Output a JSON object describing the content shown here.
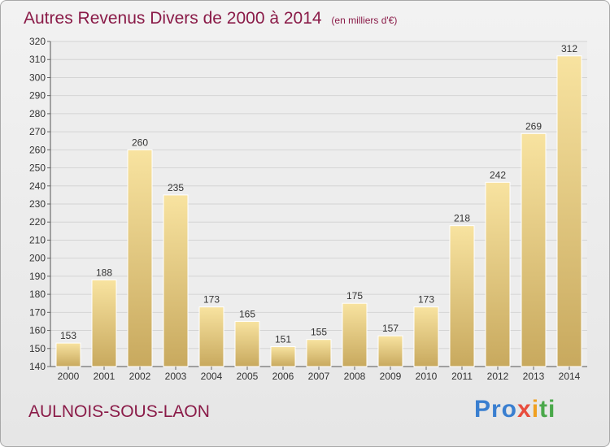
{
  "chart_data": {
    "type": "bar",
    "title": "Autres Revenus Divers de 2000 à 2014",
    "subtitle": "(en milliers d'€)",
    "categories": [
      "2000",
      "2001",
      "2002",
      "2003",
      "2004",
      "2005",
      "2006",
      "2007",
      "2008",
      "2009",
      "2010",
      "2011",
      "2012",
      "2013",
      "2014"
    ],
    "values": [
      153,
      188,
      260,
      235,
      173,
      165,
      151,
      155,
      175,
      157,
      173,
      218,
      242,
      269,
      312
    ],
    "ylim": [
      140,
      320
    ],
    "yticks": [
      140,
      150,
      160,
      170,
      180,
      190,
      200,
      210,
      220,
      230,
      240,
      250,
      260,
      270,
      280,
      290,
      300,
      310,
      320
    ],
    "grid": true,
    "data_labels": true,
    "colors": {
      "bar_top": "#f8e3a0",
      "bar_bottom": "#c8a95e",
      "title": "#8a1b48",
      "grid": "#d4d4d4"
    }
  },
  "footer": {
    "commune": "AULNOIS-SOUS-LAON",
    "logo_parts": [
      "Pro",
      "x",
      "i",
      "ti"
    ]
  }
}
